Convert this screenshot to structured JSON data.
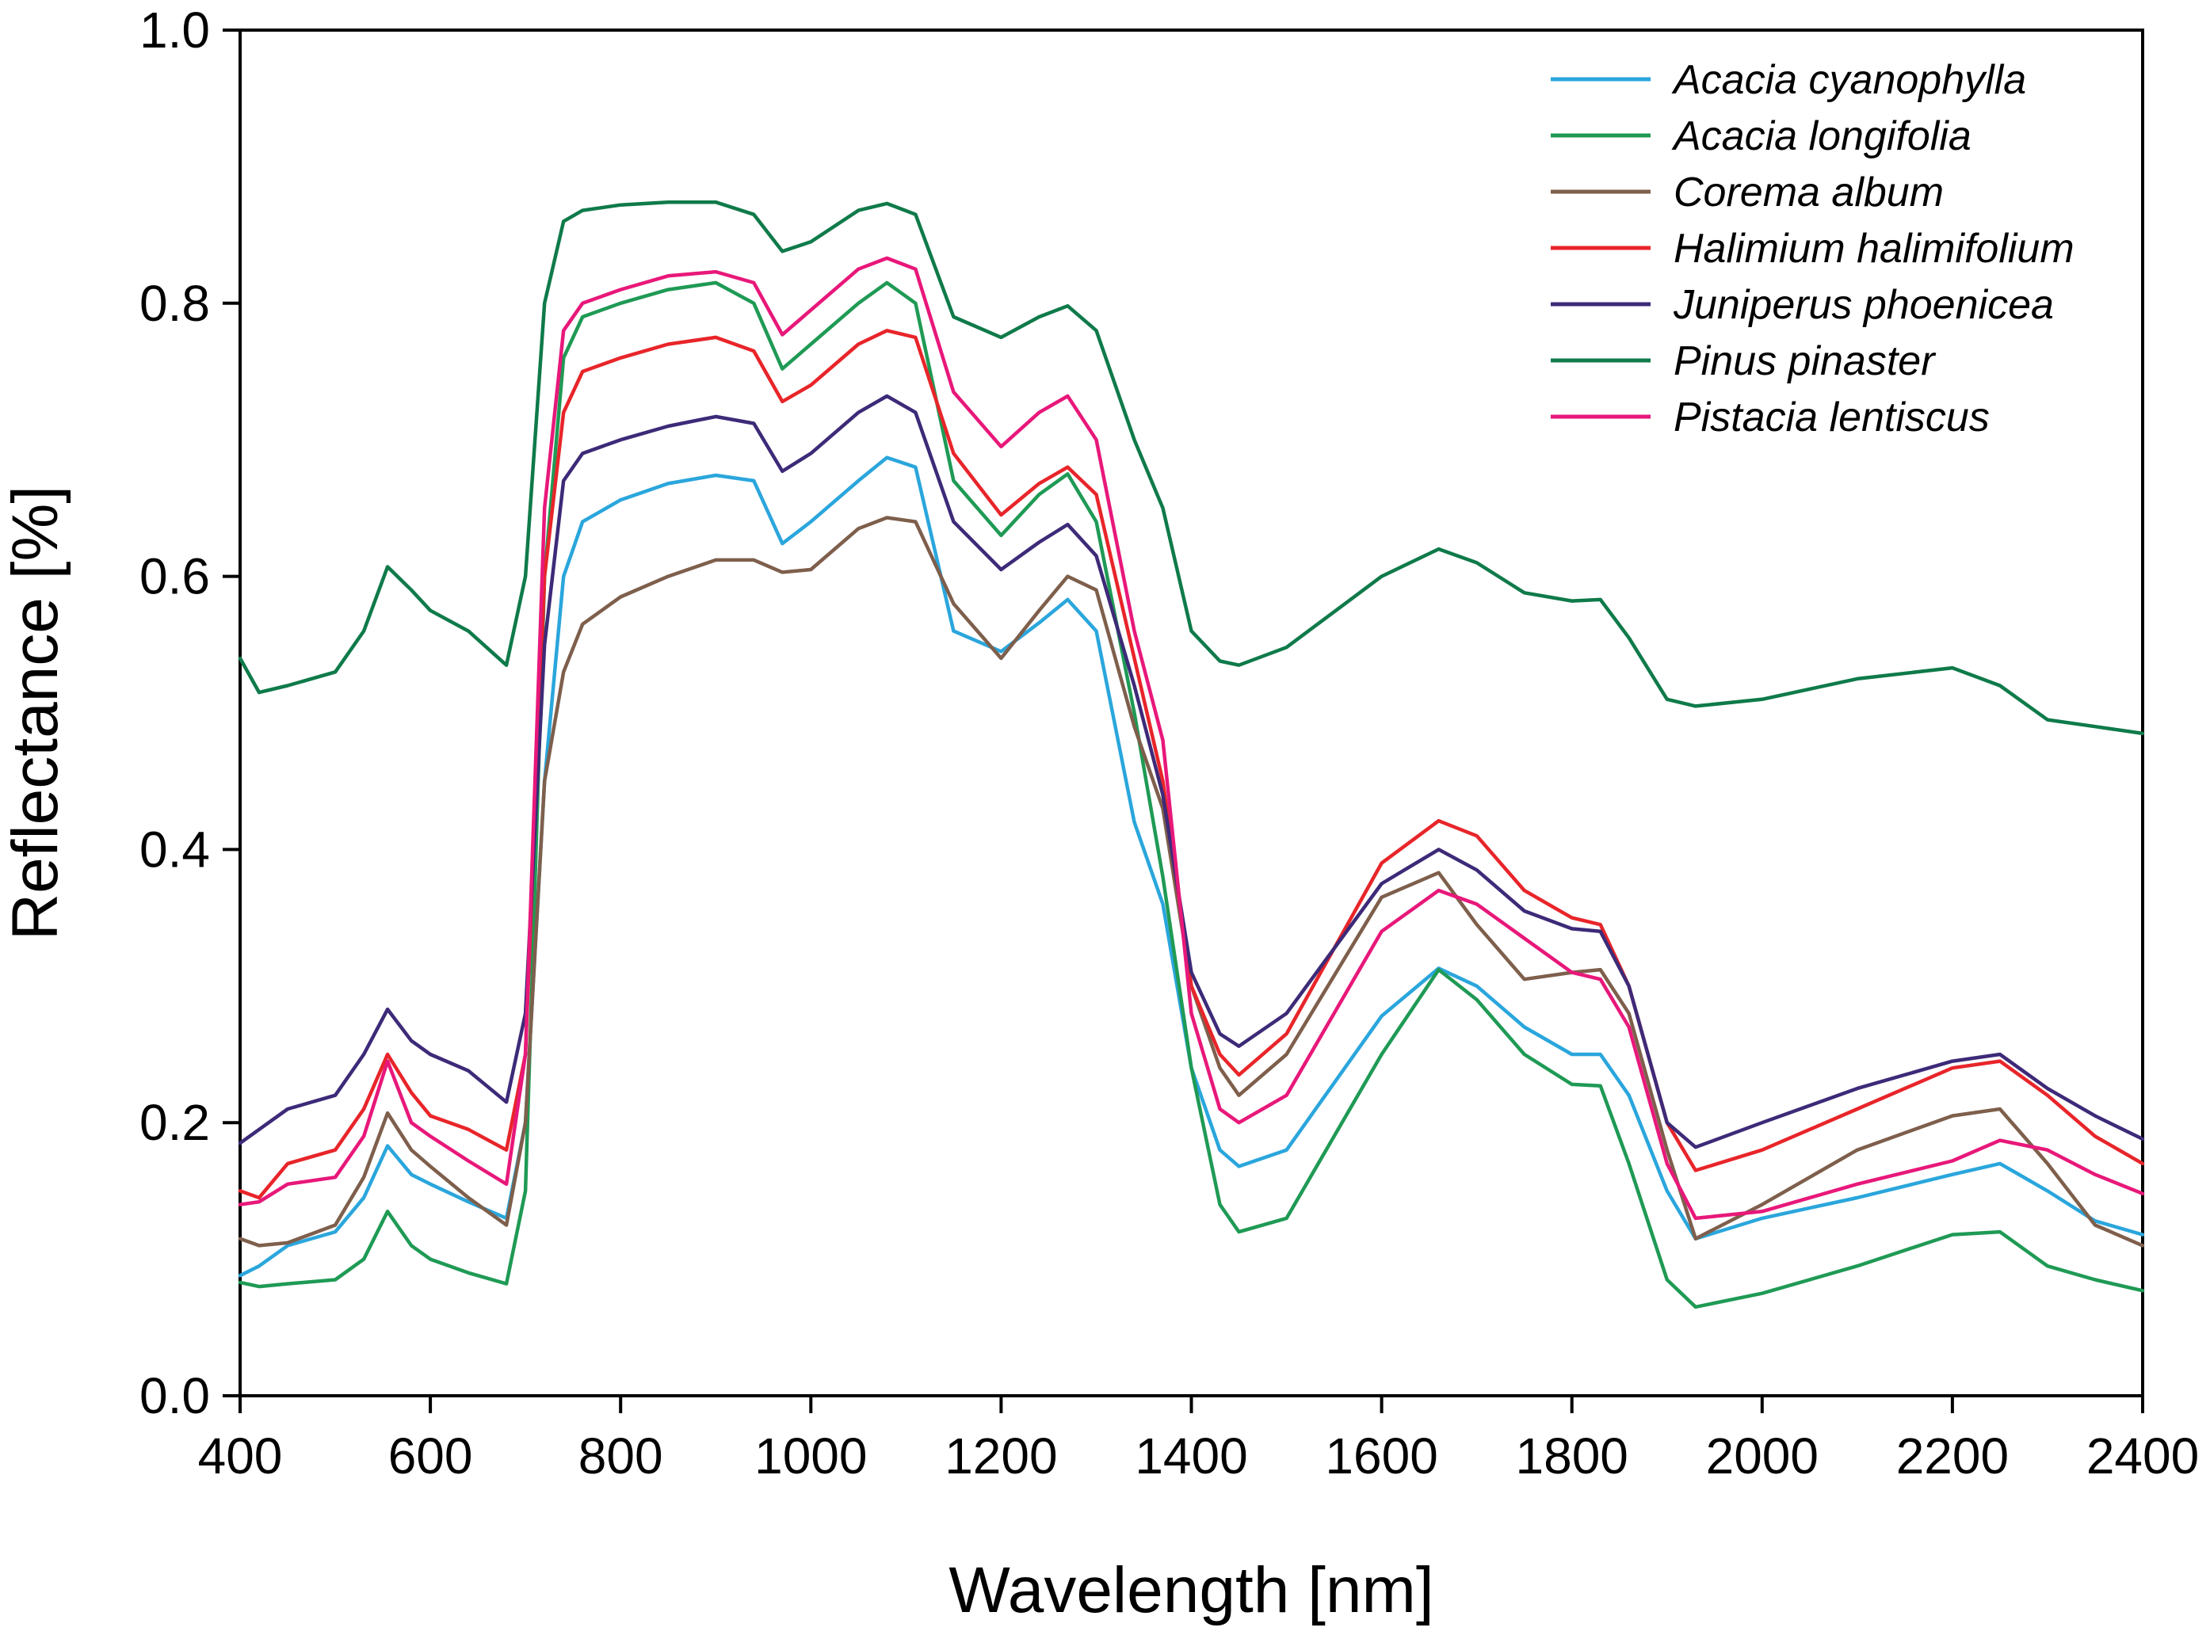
{
  "chart_data": {
    "type": "line",
    "title": "",
    "xlabel": "Wavelength [nm]",
    "ylabel": "Reflectance [%]",
    "xlim": [
      400,
      2400
    ],
    "ylim": [
      0.0,
      1.0
    ],
    "xticks": [
      "400",
      "600",
      "800",
      "1000",
      "1200",
      "1400",
      "1600",
      "1800",
      "2000",
      "2200",
      "2400"
    ],
    "yticks": [
      "0.0",
      "0.2",
      "0.4",
      "0.6",
      "0.8",
      "1.0"
    ],
    "grid": false,
    "legend_position": "top-right",
    "x": [
      400,
      420,
      450,
      500,
      530,
      555,
      580,
      600,
      640,
      680,
      700,
      720,
      740,
      760,
      800,
      850,
      900,
      940,
      970,
      1000,
      1050,
      1080,
      1110,
      1150,
      1200,
      1240,
      1270,
      1300,
      1340,
      1370,
      1400,
      1430,
      1450,
      1500,
      1600,
      1660,
      1700,
      1750,
      1800,
      1830,
      1860,
      1900,
      1930,
      2000,
      2100,
      2200,
      2250,
      2300,
      2350,
      2400
    ],
    "series": [
      {
        "name": "Acacia cyanophylla",
        "color": "#2aa6dc",
        "values": [
          0.088,
          0.095,
          0.11,
          0.12,
          0.145,
          0.183,
          0.162,
          0.155,
          0.142,
          0.13,
          0.2,
          0.45,
          0.6,
          0.64,
          0.656,
          0.668,
          0.674,
          0.67,
          0.624,
          0.64,
          0.67,
          0.687,
          0.68,
          0.56,
          0.545,
          0.566,
          0.583,
          0.56,
          0.42,
          0.36,
          0.24,
          0.18,
          0.168,
          0.18,
          0.278,
          0.313,
          0.3,
          0.27,
          0.25,
          0.25,
          0.22,
          0.15,
          0.115,
          0.13,
          0.145,
          0.162,
          0.17,
          0.15,
          0.128,
          0.118
        ]
      },
      {
        "name": "Acacia longifolia",
        "color": "#1f9a55",
        "values": [
          0.083,
          0.08,
          0.082,
          0.085,
          0.1,
          0.135,
          0.11,
          0.1,
          0.09,
          0.082,
          0.15,
          0.6,
          0.76,
          0.79,
          0.8,
          0.81,
          0.815,
          0.8,
          0.752,
          0.77,
          0.8,
          0.815,
          0.8,
          0.67,
          0.63,
          0.66,
          0.675,
          0.64,
          0.5,
          0.38,
          0.24,
          0.14,
          0.12,
          0.13,
          0.25,
          0.312,
          0.29,
          0.25,
          0.228,
          0.227,
          0.17,
          0.085,
          0.065,
          0.075,
          0.095,
          0.118,
          0.12,
          0.095,
          0.085,
          0.077
        ]
      },
      {
        "name": "Corema album",
        "color": "#7e5f4c",
        "values": [
          0.115,
          0.11,
          0.112,
          0.125,
          0.16,
          0.207,
          0.18,
          0.168,
          0.145,
          0.125,
          0.2,
          0.45,
          0.53,
          0.565,
          0.585,
          0.6,
          0.612,
          0.612,
          0.603,
          0.605,
          0.635,
          0.643,
          0.64,
          0.58,
          0.54,
          0.575,
          0.6,
          0.59,
          0.49,
          0.43,
          0.3,
          0.24,
          0.22,
          0.25,
          0.365,
          0.383,
          0.345,
          0.305,
          0.31,
          0.312,
          0.28,
          0.18,
          0.115,
          0.14,
          0.18,
          0.205,
          0.21,
          0.17,
          0.125,
          0.11
        ]
      },
      {
        "name": "Halimium halimifolium",
        "color": "#e8252a",
        "values": [
          0.15,
          0.145,
          0.17,
          0.18,
          0.21,
          0.25,
          0.222,
          0.205,
          0.195,
          0.18,
          0.25,
          0.6,
          0.72,
          0.75,
          0.76,
          0.77,
          0.775,
          0.765,
          0.728,
          0.74,
          0.77,
          0.78,
          0.775,
          0.69,
          0.645,
          0.668,
          0.68,
          0.66,
          0.54,
          0.45,
          0.3,
          0.25,
          0.235,
          0.265,
          0.39,
          0.421,
          0.41,
          0.37,
          0.35,
          0.345,
          0.3,
          0.2,
          0.165,
          0.18,
          0.21,
          0.24,
          0.245,
          0.22,
          0.19,
          0.17
        ]
      },
      {
        "name": "Juniperus phoenicea",
        "color": "#3d2a78",
        "values": [
          0.185,
          0.195,
          0.21,
          0.22,
          0.25,
          0.283,
          0.26,
          0.25,
          0.238,
          0.215,
          0.28,
          0.55,
          0.67,
          0.69,
          0.7,
          0.71,
          0.717,
          0.712,
          0.677,
          0.69,
          0.72,
          0.732,
          0.72,
          0.64,
          0.605,
          0.625,
          0.638,
          0.615,
          0.52,
          0.44,
          0.31,
          0.265,
          0.256,
          0.28,
          0.375,
          0.4,
          0.385,
          0.355,
          0.342,
          0.34,
          0.3,
          0.2,
          0.182,
          0.2,
          0.225,
          0.245,
          0.25,
          0.225,
          0.205,
          0.188
        ]
      },
      {
        "name": "Pinus pinaster",
        "color": "#0f7a4a",
        "values": [
          0.54,
          0.515,
          0.52,
          0.53,
          0.56,
          0.607,
          0.59,
          0.575,
          0.56,
          0.535,
          0.6,
          0.8,
          0.86,
          0.868,
          0.872,
          0.874,
          0.874,
          0.865,
          0.838,
          0.845,
          0.868,
          0.873,
          0.865,
          0.79,
          0.775,
          0.79,
          0.798,
          0.78,
          0.7,
          0.65,
          0.56,
          0.538,
          0.535,
          0.548,
          0.6,
          0.62,
          0.61,
          0.588,
          0.582,
          0.583,
          0.555,
          0.51,
          0.505,
          0.51,
          0.525,
          0.533,
          0.52,
          0.495,
          0.49,
          0.485
        ]
      },
      {
        "name": "Pistacia lentiscus",
        "color": "#e8187a",
        "values": [
          0.14,
          0.142,
          0.155,
          0.16,
          0.19,
          0.245,
          0.2,
          0.19,
          0.172,
          0.155,
          0.25,
          0.65,
          0.78,
          0.8,
          0.81,
          0.82,
          0.823,
          0.815,
          0.777,
          0.795,
          0.825,
          0.833,
          0.825,
          0.735,
          0.695,
          0.72,
          0.732,
          0.7,
          0.56,
          0.48,
          0.28,
          0.21,
          0.2,
          0.22,
          0.34,
          0.37,
          0.36,
          0.335,
          0.31,
          0.305,
          0.27,
          0.17,
          0.13,
          0.135,
          0.155,
          0.172,
          0.187,
          0.18,
          0.162,
          0.148
        ]
      }
    ]
  }
}
